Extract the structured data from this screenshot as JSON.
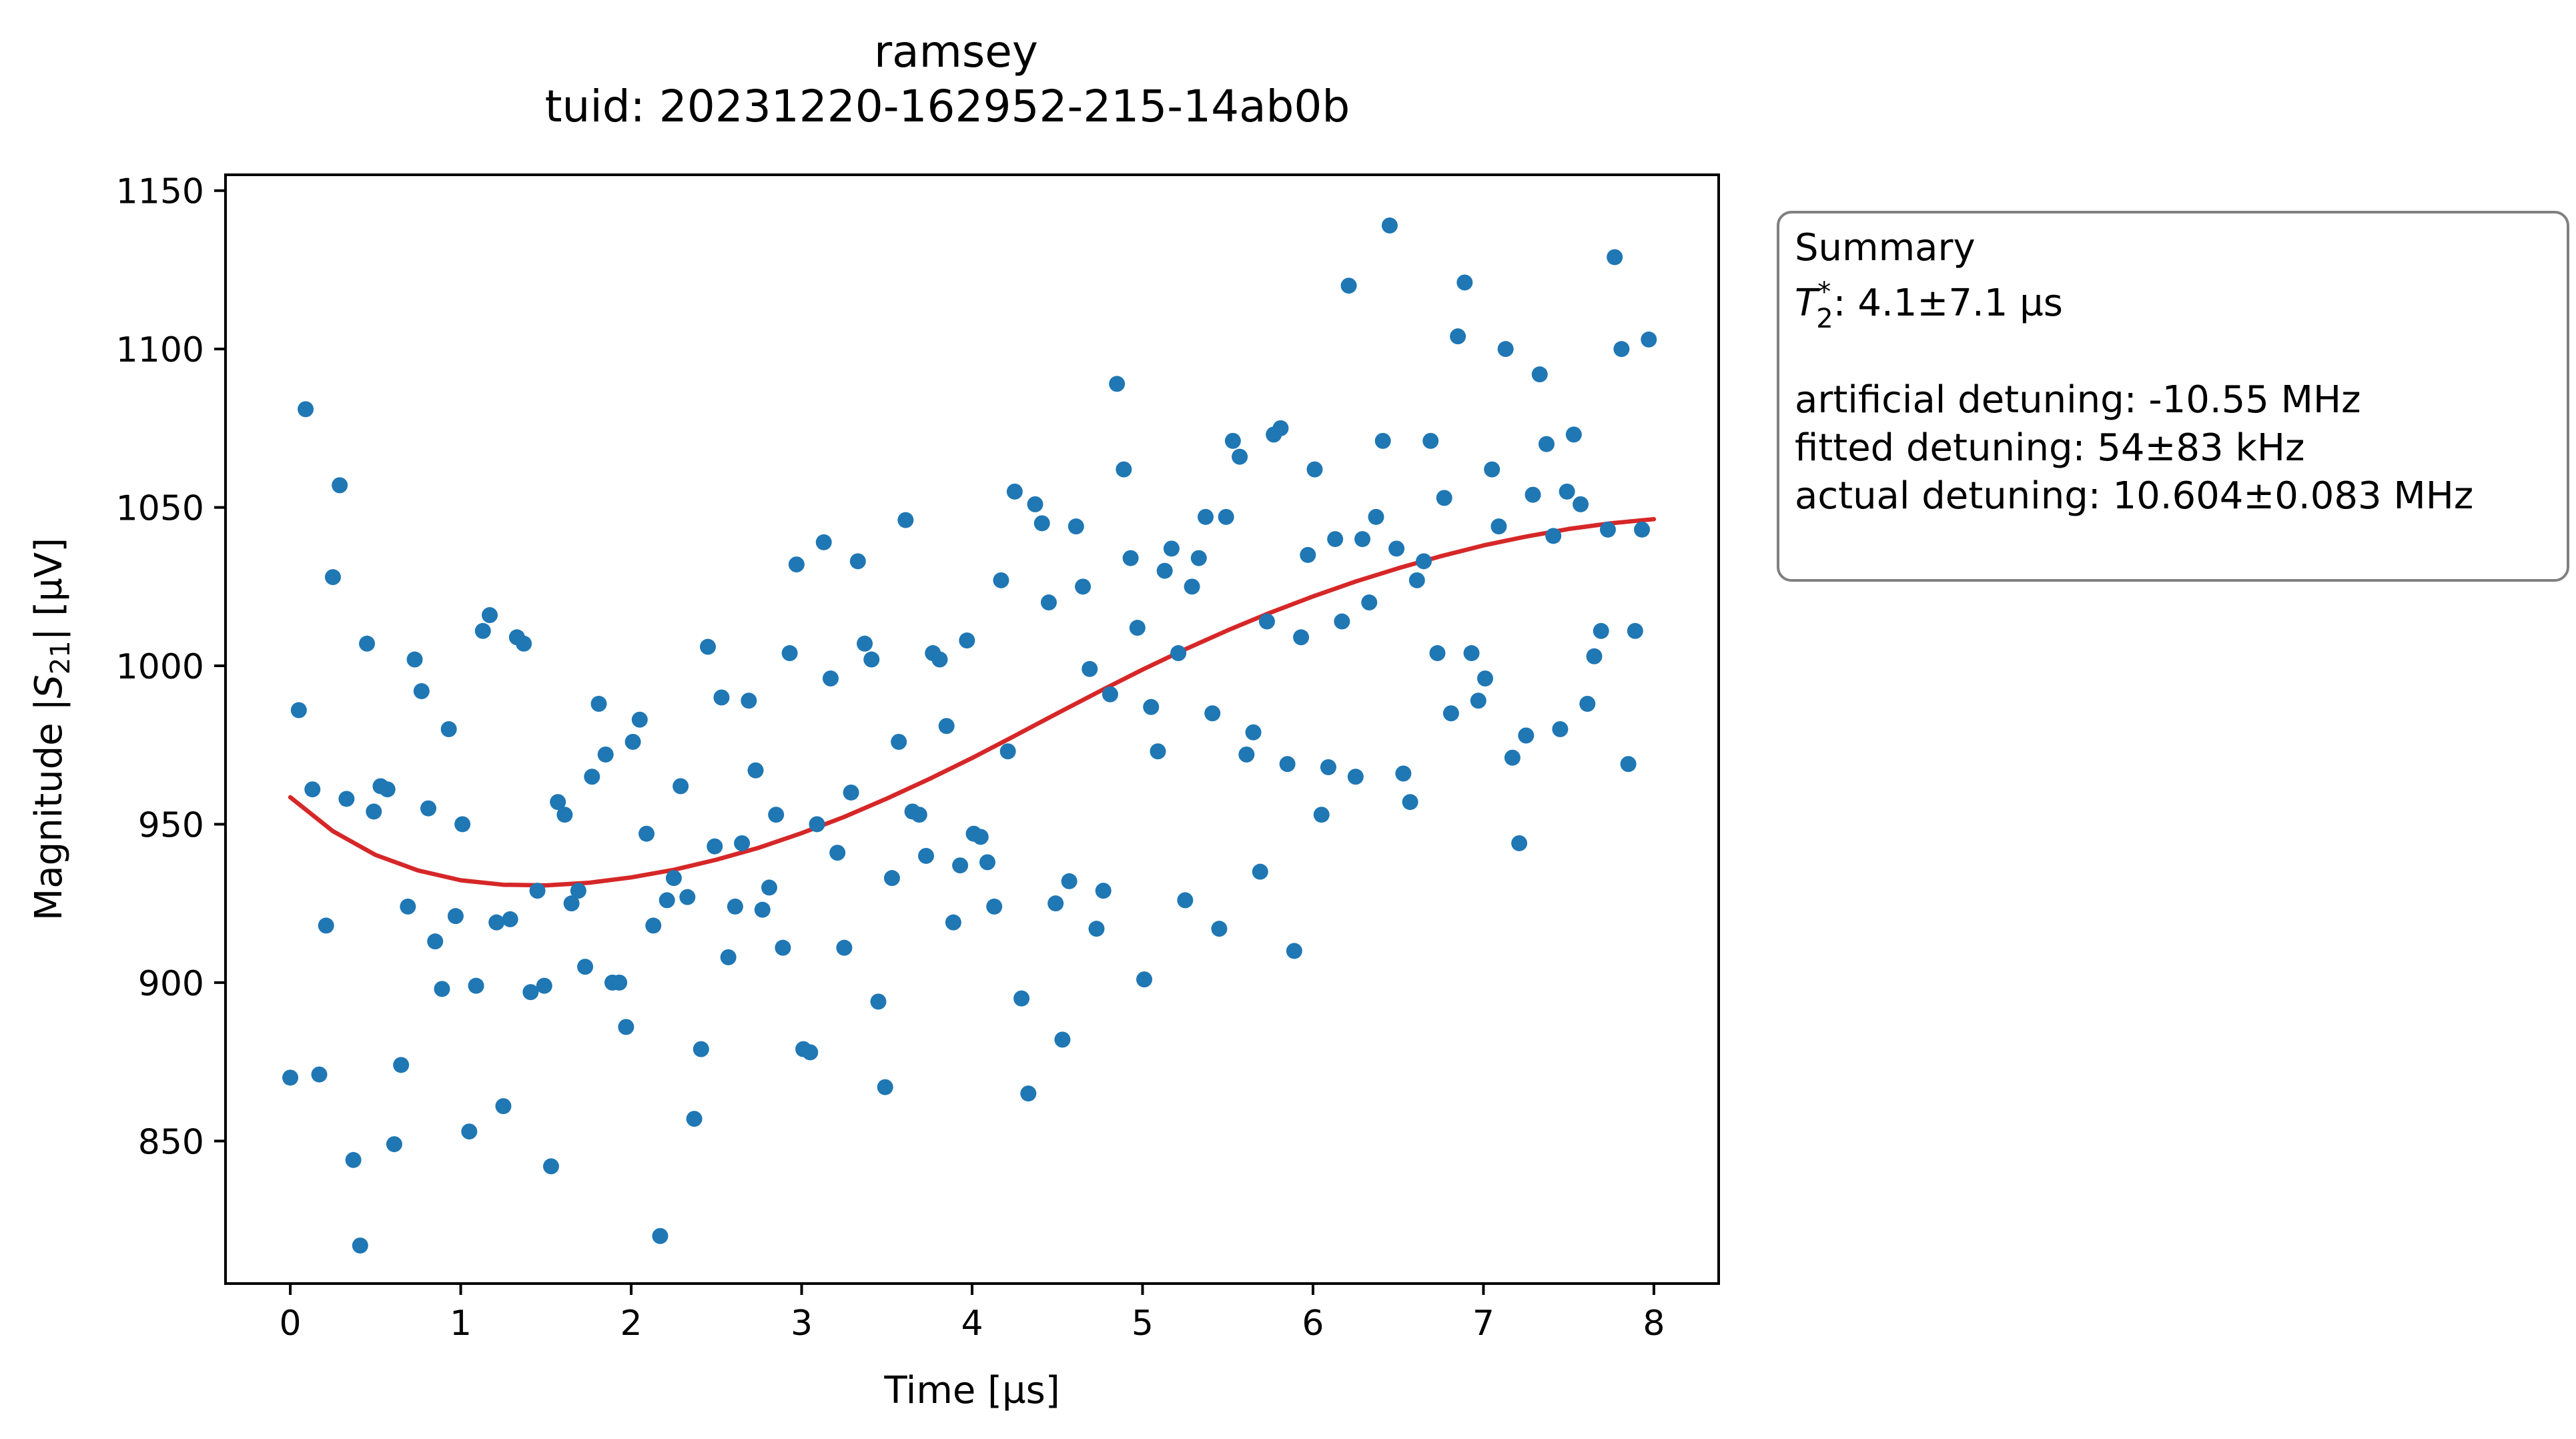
{
  "chart_data": {
    "type": "scatter",
    "title": "ramsey",
    "subtitle": "tuid: 20231220-162952-215-14ab0b",
    "xlabel": "Time [µs]",
    "ylabel_prefix": "Magnitude |",
    "ylabel_var": "S",
    "ylabel_sub": "21",
    "ylabel_suffix": "| [µV]",
    "xlim": [
      -0.38,
      8.38
    ],
    "ylim": [
      805,
      1155
    ],
    "xticks": [
      0,
      1,
      2,
      3,
      4,
      5,
      6,
      7,
      8
    ],
    "yticks": [
      850,
      900,
      950,
      1000,
      1050,
      1100,
      1150
    ],
    "grid": false,
    "series": [
      {
        "kind": "points",
        "color": "#1f77b4",
        "x": [
          0.0,
          0.05,
          0.09,
          0.13,
          0.17,
          0.21,
          0.25,
          0.29,
          0.33,
          0.37,
          0.41,
          0.45,
          0.49,
          0.53,
          0.57,
          0.61,
          0.65,
          0.69,
          0.73,
          0.77,
          0.81,
          0.85,
          0.89,
          0.93,
          0.97,
          1.01,
          1.05,
          1.09,
          1.13,
          1.17,
          1.21,
          1.25,
          1.29,
          1.33,
          1.37,
          1.41,
          1.45,
          1.49,
          1.53,
          1.57,
          1.61,
          1.65,
          1.69,
          1.73,
          1.77,
          1.81,
          1.85,
          1.89,
          1.93,
          1.97,
          2.01,
          2.05,
          2.09,
          2.13,
          2.17,
          2.21,
          2.25,
          2.29,
          2.33,
          2.37,
          2.41,
          2.45,
          2.49,
          2.53,
          2.57,
          2.61,
          2.65,
          2.69,
          2.73,
          2.77,
          2.81,
          2.85,
          2.89,
          2.93,
          2.97,
          3.01,
          3.05,
          3.09,
          3.13,
          3.17,
          3.21,
          3.25,
          3.29,
          3.33,
          3.37,
          3.41,
          3.45,
          3.49,
          3.53,
          3.57,
          3.61,
          3.65,
          3.69,
          3.73,
          3.77,
          3.81,
          3.85,
          3.89,
          3.93,
          3.97,
          4.01,
          4.05,
          4.09,
          4.13,
          4.17,
          4.21,
          4.25,
          4.29,
          4.33,
          4.37,
          4.41,
          4.45,
          4.49,
          4.53,
          4.57,
          4.61,
          4.65,
          4.69,
          4.73,
          4.77,
          4.81,
          4.85,
          4.89,
          4.93,
          4.97,
          5.01,
          5.05,
          5.09,
          5.13,
          5.17,
          5.21,
          5.25,
          5.29,
          5.33,
          5.37,
          5.41,
          5.45,
          5.49,
          5.53,
          5.57,
          5.61,
          5.65,
          5.69,
          5.73,
          5.77,
          5.81,
          5.85,
          5.89,
          5.93,
          5.97,
          6.01,
          6.05,
          6.09,
          6.13,
          6.17,
          6.21,
          6.25,
          6.29,
          6.33,
          6.37,
          6.41,
          6.45,
          6.49,
          6.53,
          6.57,
          6.61,
          6.65,
          6.69,
          6.73,
          6.77,
          6.81,
          6.85,
          6.89,
          6.93,
          6.97,
          7.01,
          7.05,
          7.09,
          7.13,
          7.17,
          7.21,
          7.25,
          7.29,
          7.33,
          7.37,
          7.41,
          7.45,
          7.49,
          7.53,
          7.57,
          7.61,
          7.65,
          7.69,
          7.73,
          7.77,
          7.81,
          7.85,
          7.89,
          7.93,
          7.97
        ],
        "y": [
          870,
          986,
          1081,
          961,
          871,
          918,
          1028,
          1057,
          958,
          844,
          817,
          1007,
          954,
          962,
          961,
          849,
          874,
          924,
          1002,
          992,
          955,
          913,
          898,
          980,
          921,
          950,
          853,
          899,
          1011,
          1016,
          919,
          861,
          920,
          1009,
          1007,
          897,
          929,
          899,
          842,
          957,
          953,
          925,
          929,
          905,
          965,
          988,
          972,
          900,
          900,
          886,
          976,
          983,
          947,
          918,
          820,
          926,
          933,
          962,
          927,
          857,
          879,
          1006,
          943,
          990,
          908,
          924,
          944,
          989,
          967,
          923,
          930,
          953,
          911,
          1004,
          1032,
          879,
          878,
          950,
          1039,
          996,
          941,
          911,
          960,
          1033,
          1007,
          1002,
          894,
          867,
          933,
          976,
          1046,
          954,
          953,
          940,
          1004,
          1002,
          981,
          919,
          937,
          1008,
          947,
          946,
          938,
          924,
          1027,
          973,
          1055,
          895,
          865,
          1051,
          1045,
          1020,
          925,
          882,
          932,
          1044,
          1025,
          999,
          917,
          929,
          991,
          1089,
          1062,
          1034,
          1012,
          901,
          987,
          973,
          1030,
          1037,
          1004,
          926,
          1025,
          1034,
          1047,
          985,
          917,
          1047,
          1071,
          1066,
          972,
          979,
          935,
          1014,
          1073,
          1075,
          969,
          910,
          1009,
          1035,
          1062,
          953,
          968,
          1040,
          1014,
          1120,
          965,
          1040,
          1020,
          1047,
          1071,
          1139,
          1037,
          966,
          957,
          1027,
          1033,
          1071,
          1004,
          1053,
          985,
          1104,
          1121,
          1004,
          989,
          996,
          1062,
          1044,
          1100,
          971,
          944,
          978,
          1054,
          1092,
          1070,
          1041,
          980,
          1055,
          1073,
          1051,
          988,
          1003,
          1011,
          1043,
          1129,
          1100,
          969,
          1011,
          1043,
          1103
        ]
      },
      {
        "kind": "fit",
        "color": "#d62728",
        "x": [
          0.0,
          0.25,
          0.5,
          0.75,
          1.0,
          1.25,
          1.5,
          1.75,
          2.0,
          2.25,
          2.5,
          2.75,
          3.0,
          3.25,
          3.5,
          3.75,
          4.0,
          4.25,
          4.5,
          4.75,
          5.0,
          5.25,
          5.5,
          5.75,
          6.0,
          6.25,
          6.5,
          6.75,
          7.0,
          7.25,
          7.5,
          7.75,
          8.0
        ],
        "y": [
          958.5,
          947.8,
          940.3,
          935.4,
          932.3,
          930.9,
          930.7,
          931.5,
          933.2,
          935.6,
          938.8,
          942.6,
          947.2,
          952.3,
          958.1,
          964.3,
          970.9,
          977.9,
          985.0,
          992.0,
          998.8,
          1005.2,
          1011.2,
          1016.8,
          1021.9,
          1026.6,
          1030.8,
          1034.6,
          1038.0,
          1040.8,
          1043.2,
          1045.0,
          1046.3
        ]
      }
    ],
    "legend_position": "outside-right",
    "summary": {
      "heading": "Summary",
      "t2_prefix": "T",
      "t2_sub": "2",
      "t2_sup": "*",
      "t2_value": ": 4.1±7.1 µs",
      "line_artificial": "artificial detuning: -10.55 MHz",
      "line_fitted": "fitted detuning: 54±83 kHz",
      "line_actual": "actual detuning: 10.604±0.083 MHz"
    }
  }
}
